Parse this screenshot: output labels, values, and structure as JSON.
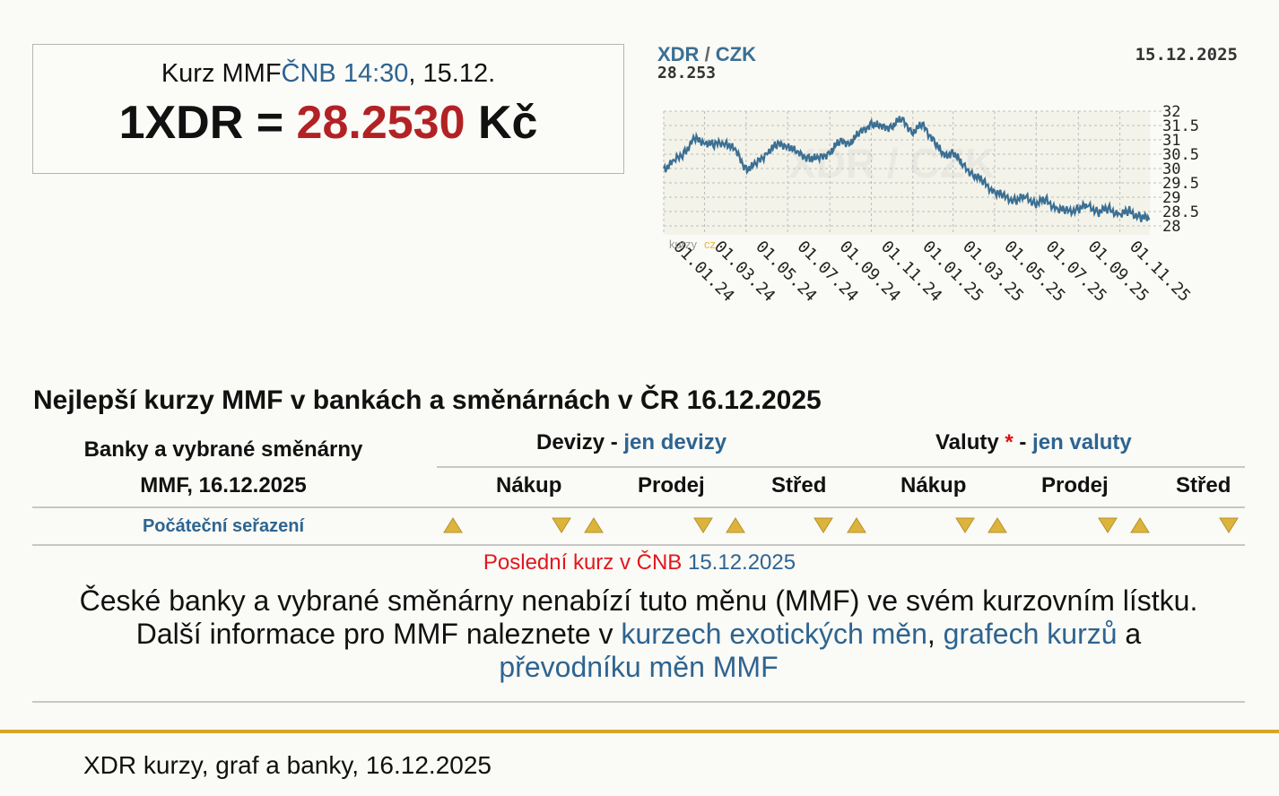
{
  "rate_box": {
    "prefix": "Kurz MMF",
    "source_link": "ČNB 14:30",
    "date": ", 15.12.",
    "lhs": "1XDR = ",
    "value": "28.2530",
    "unit": " Kč"
  },
  "chart": {
    "pair_left": "XDR",
    "pair_sep": " / ",
    "pair_right": "CZK",
    "current": "28.253",
    "date": "15.12.2025",
    "watermark_text": "XDR / CZK",
    "logo_text": "kurzy"
  },
  "chart_data": {
    "type": "line",
    "title": "XDR / CZK",
    "y_ticks": [
      "32",
      "31.5",
      "31",
      "30.5",
      "30",
      "29.5",
      "29",
      "28.5",
      "28"
    ],
    "ylim": [
      28,
      32
    ],
    "x_ticks": [
      "01.01.24",
      "01.03.24",
      "01.05.24",
      "01.07.24",
      "01.09.24",
      "01.11.24",
      "01.01.25",
      "01.03.25",
      "01.05.25",
      "01.07.25",
      "01.09.25",
      "01.11.25"
    ],
    "series": [
      {
        "x": [
          "2024-01-01",
          "2024-01-15",
          "2024-02-01",
          "2024-02-15",
          "2024-03-01",
          "2024-03-15",
          "2024-04-01",
          "2024-04-15",
          "2024-05-01",
          "2024-05-15",
          "2024-06-01",
          "2024-06-15",
          "2024-07-01",
          "2024-07-15",
          "2024-08-01",
          "2024-08-15",
          "2024-09-01",
          "2024-09-15",
          "2024-10-01",
          "2024-10-15",
          "2024-11-01",
          "2024-11-15",
          "2024-12-01",
          "2024-12-15",
          "2025-01-01",
          "2025-01-15",
          "2025-02-01",
          "2025-02-15",
          "2025-03-01",
          "2025-03-15",
          "2025-04-01",
          "2025-04-15",
          "2025-05-01",
          "2025-05-15",
          "2025-06-01",
          "2025-06-15",
          "2025-07-01",
          "2025-07-15",
          "2025-08-01",
          "2025-08-15",
          "2025-09-01",
          "2025-09-15",
          "2025-10-01",
          "2025-10-15",
          "2025-11-01",
          "2025-11-15",
          "2025-12-01",
          "2025-12-15"
        ],
        "values": [
          30.0,
          30.2,
          30.6,
          31.0,
          30.95,
          30.8,
          30.95,
          30.6,
          30.0,
          30.1,
          30.6,
          30.8,
          30.85,
          30.5,
          30.4,
          30.3,
          30.6,
          30.9,
          30.95,
          31.2,
          31.6,
          31.4,
          31.5,
          31.7,
          31.3,
          31.5,
          31.0,
          30.4,
          30.6,
          30.1,
          29.8,
          29.5,
          29.2,
          29.0,
          28.9,
          29.0,
          28.8,
          28.9,
          28.6,
          28.5,
          28.6,
          28.7,
          28.5,
          28.6,
          28.4,
          28.5,
          28.3,
          28.253
        ]
      }
    ]
  },
  "section": {
    "title": "Nejlepší kurzy MMF v bankách a směnárnách v ČR 16.12.2025"
  },
  "table": {
    "left_header_line1": "Banky a vybrané směnárny",
    "left_header_line2": "MMF, 16.12.2025",
    "devizy_label": "Devizy",
    "devizy_sep": " - ",
    "devizy_link": "jen devizy",
    "valuty_label": "Valuty",
    "valuty_star": " *",
    "valuty_sep": " - ",
    "valuty_link": "jen valuty",
    "col_buy": "Nákup",
    "col_sell": "Prodej",
    "col_mid": "Střed",
    "sort_reset": "Počáteční seřazení"
  },
  "notice": {
    "last_rate_label": "Poslední kurz v ČNB",
    "last_rate_date": "15.12.2025",
    "msg_line1": "České banky a vybrané směnárny nenabízí tuto měnu (MMF) ve svém kurzovním lístku.",
    "msg_line2_prefix": "Další informace pro MMF naleznete v ",
    "link_exotic": "kurzech exotických měn",
    "comma": ", ",
    "link_graphs": "grafech kurzů",
    "and": " a",
    "link_converter": "převodníku měn MMF"
  },
  "footer": {
    "text": "XDR kurzy, graf a banky, 16.12.2025"
  },
  "colors": {
    "link": "#2e6490",
    "rate_value": "#b22225",
    "line": "#3b6f93",
    "gold_rule": "#d9a526",
    "arrow": "#dcb43c"
  }
}
